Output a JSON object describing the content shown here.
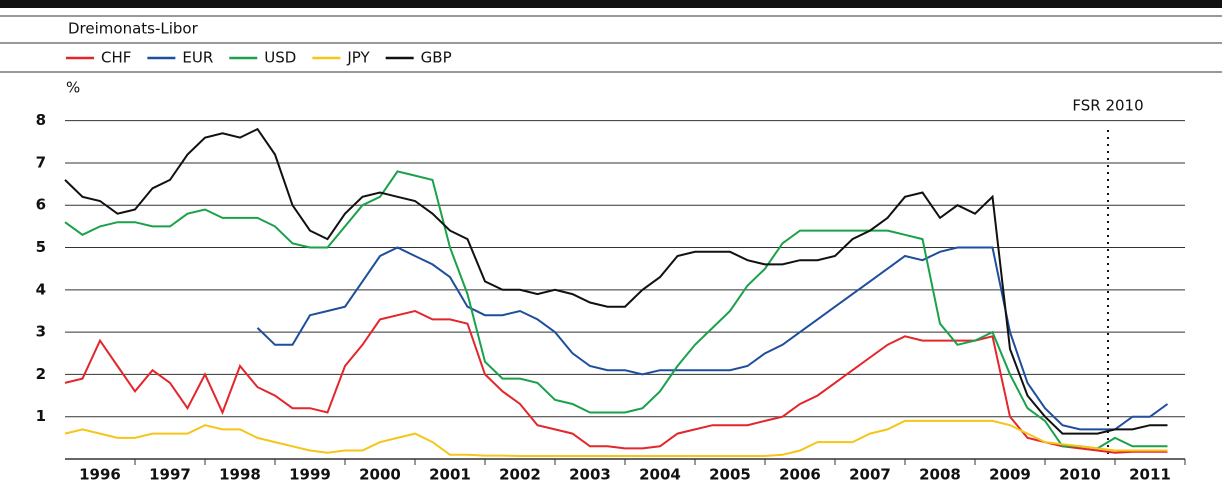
{
  "chart_data": {
    "type": "line",
    "subtitle": "Dreimonats-Libor",
    "ylabel": "%",
    "annotation": {
      "text": "FSR 2010",
      "x": 2010.9
    },
    "xlim": [
      1996,
      2012
    ],
    "ylim": [
      0,
      8.5
    ],
    "yticks": [
      1,
      2,
      3,
      4,
      5,
      6,
      7,
      8
    ],
    "grid": true,
    "legend": "top-left",
    "xticks": [
      {
        "value": 1996.5,
        "label": "1996"
      },
      {
        "value": 1997.5,
        "label": "1997"
      },
      {
        "value": 1998.5,
        "label": "1998"
      },
      {
        "value": 1999.5,
        "label": "1999"
      },
      {
        "value": 2000.5,
        "label": "2000"
      },
      {
        "value": 2001.5,
        "label": "2001"
      },
      {
        "value": 2002.5,
        "label": "2002"
      },
      {
        "value": 2003.5,
        "label": "2003"
      },
      {
        "value": 2004.5,
        "label": "2004"
      },
      {
        "value": 2005.5,
        "label": "2005"
      },
      {
        "value": 2006.5,
        "label": "2006"
      },
      {
        "value": 2007.5,
        "label": "2007"
      },
      {
        "value": 2008.5,
        "label": "2008"
      },
      {
        "value": 2009.5,
        "label": "2009"
      },
      {
        "value": 2010.5,
        "label": "2010"
      },
      {
        "value": 2011.5,
        "label": "2011"
      }
    ],
    "x": [
      1996,
      1996.25,
      1996.5,
      1996.75,
      1997,
      1997.25,
      1997.5,
      1997.75,
      1998,
      1998.25,
      1998.5,
      1998.75,
      1999,
      1999.25,
      1999.5,
      1999.75,
      2000,
      2000.25,
      2000.5,
      2000.75,
      2001,
      2001.25,
      2001.5,
      2001.75,
      2002,
      2002.25,
      2002.5,
      2002.75,
      2003,
      2003.25,
      2003.5,
      2003.75,
      2004,
      2004.25,
      2004.5,
      2004.75,
      2005,
      2005.25,
      2005.5,
      2005.75,
      2006,
      2006.25,
      2006.5,
      2006.75,
      2007,
      2007.25,
      2007.5,
      2007.75,
      2008,
      2008.25,
      2008.5,
      2008.75,
      2009,
      2009.25,
      2009.5,
      2009.75,
      2010,
      2010.25,
      2010.5,
      2010.75,
      2011,
      2011.25,
      2011.5,
      2011.75
    ],
    "series": [
      {
        "name": "CHF",
        "color": "#e3262b",
        "values": [
          1.8,
          1.9,
          2.8,
          2.2,
          1.6,
          2.1,
          1.8,
          1.2,
          2.0,
          1.1,
          2.2,
          1.7,
          1.5,
          1.2,
          1.2,
          1.1,
          2.2,
          2.7,
          3.3,
          3.4,
          3.5,
          3.3,
          3.3,
          3.2,
          2.0,
          1.6,
          1.3,
          0.8,
          0.7,
          0.6,
          0.3,
          0.3,
          0.25,
          0.25,
          0.3,
          0.6,
          0.7,
          0.8,
          0.8,
          0.8,
          0.9,
          1.0,
          1.3,
          1.5,
          1.8,
          2.1,
          2.4,
          2.7,
          2.9,
          2.8,
          2.8,
          2.8,
          2.8,
          2.9,
          1.0,
          0.5,
          0.4,
          0.3,
          0.25,
          0.2,
          0.15,
          0.17,
          0.17,
          0.17
        ]
      },
      {
        "name": "EUR",
        "color": "#1f4e9c",
        "values": [
          null,
          null,
          null,
          null,
          null,
          null,
          null,
          null,
          null,
          null,
          null,
          3.1,
          2.7,
          2.7,
          3.4,
          3.5,
          3.6,
          4.2,
          4.8,
          5.0,
          4.8,
          4.6,
          4.3,
          3.6,
          3.4,
          3.4,
          3.5,
          3.3,
          3.0,
          2.5,
          2.2,
          2.1,
          2.1,
          2.0,
          2.1,
          2.1,
          2.1,
          2.1,
          2.1,
          2.2,
          2.5,
          2.7,
          3.0,
          3.3,
          3.6,
          3.9,
          4.2,
          4.5,
          4.8,
          4.7,
          4.9,
          5.0,
          5.0,
          5.0,
          3.0,
          1.8,
          1.2,
          0.8,
          0.7,
          0.7,
          0.7,
          1.0,
          1.0,
          1.3
        ]
      },
      {
        "name": "USD",
        "color": "#1aa14a",
        "values": [
          5.6,
          5.3,
          5.5,
          5.6,
          5.6,
          5.5,
          5.5,
          5.8,
          5.9,
          5.7,
          5.7,
          5.7,
          5.5,
          5.1,
          5.0,
          5.0,
          5.5,
          6.0,
          6.2,
          6.8,
          6.7,
          6.6,
          5.0,
          3.9,
          2.3,
          1.9,
          1.9,
          1.8,
          1.4,
          1.3,
          1.1,
          1.1,
          1.1,
          1.2,
          1.6,
          2.2,
          2.7,
          3.1,
          3.5,
          4.1,
          4.5,
          5.1,
          5.4,
          5.4,
          5.4,
          5.4,
          5.4,
          5.4,
          5.3,
          5.2,
          3.2,
          2.7,
          2.8,
          3.0,
          2.0,
          1.2,
          0.9,
          0.3,
          0.3,
          0.25,
          0.5,
          0.3,
          0.3,
          0.3
        ]
      },
      {
        "name": "JPY",
        "color": "#f5c518",
        "values": [
          0.6,
          0.7,
          0.6,
          0.5,
          0.5,
          0.6,
          0.6,
          0.6,
          0.8,
          0.7,
          0.7,
          0.5,
          0.4,
          0.3,
          0.2,
          0.15,
          0.2,
          0.2,
          0.4,
          0.5,
          0.6,
          0.4,
          0.1,
          0.1,
          0.08,
          0.08,
          0.07,
          0.07,
          0.07,
          0.07,
          0.07,
          0.07,
          0.07,
          0.07,
          0.07,
          0.07,
          0.07,
          0.07,
          0.07,
          0.07,
          0.07,
          0.1,
          0.2,
          0.4,
          0.4,
          0.4,
          0.6,
          0.7,
          0.9,
          0.9,
          0.9,
          0.9,
          0.9,
          0.9,
          0.8,
          0.6,
          0.4,
          0.35,
          0.3,
          0.25,
          0.2,
          0.2,
          0.2,
          0.2
        ]
      },
      {
        "name": "GBP",
        "color": "#111111",
        "values": [
          6.6,
          6.2,
          6.1,
          5.8,
          5.9,
          6.4,
          6.6,
          7.2,
          7.6,
          7.7,
          7.6,
          7.8,
          7.2,
          6.0,
          5.4,
          5.2,
          5.8,
          6.2,
          6.3,
          6.2,
          6.1,
          5.8,
          5.4,
          5.2,
          4.2,
          4.0,
          4.0,
          3.9,
          4.0,
          3.9,
          3.7,
          3.6,
          3.6,
          4.0,
          4.3,
          4.8,
          4.9,
          4.9,
          4.9,
          4.7,
          4.6,
          4.6,
          4.7,
          4.7,
          4.8,
          5.2,
          5.4,
          5.7,
          6.2,
          6.3,
          5.7,
          6.0,
          5.8,
          6.2,
          2.6,
          1.5,
          1.0,
          0.6,
          0.6,
          0.6,
          0.7,
          0.7,
          0.8,
          0.8
        ]
      }
    ]
  }
}
